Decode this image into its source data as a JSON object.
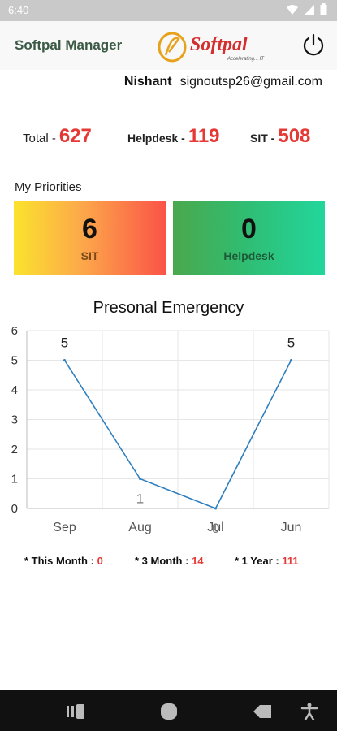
{
  "status_bar": {
    "time": "6:40",
    "icons": [
      "wifi-icon",
      "signal-icon",
      "battery-icon"
    ]
  },
  "header": {
    "app_title": "Softpal Manager",
    "logo_text": "Softpal",
    "logo_tagline": "Accelerating... IT",
    "power_icon": "power-icon"
  },
  "user": {
    "name": "Nishant",
    "email": "signoutsp26@gmail.com"
  },
  "totals": {
    "total_label": "Total -",
    "total_value": "627",
    "helpdesk_label": "Helpdesk -",
    "helpdesk_value": "119",
    "sit_label": "SIT -",
    "sit_value": "508"
  },
  "priorities": {
    "title": "My Priorities",
    "cards": [
      {
        "value": "6",
        "label": "SIT"
      },
      {
        "value": "0",
        "label": "Helpdesk"
      }
    ]
  },
  "chart_data": {
    "type": "line",
    "title": "Presonal Emergency",
    "categories": [
      "Sep",
      "Aug",
      "Jul",
      "Jun"
    ],
    "values": [
      5,
      1,
      0,
      5
    ],
    "ylim": [
      0,
      6
    ],
    "yticks": [
      0,
      1,
      2,
      3,
      4,
      5,
      6
    ],
    "grid": true,
    "line_color": "#2e7fbf"
  },
  "summary": {
    "this_month_label": "* This Month :",
    "this_month_value": "0",
    "three_month_label": "* 3 Month :",
    "three_month_value": "14",
    "one_year_label": "* 1 Year :",
    "one_year_value": "111"
  },
  "nav": {
    "icons": [
      "recent-apps-icon",
      "home-icon",
      "back-icon",
      "accessibility-icon"
    ]
  },
  "colors": {
    "accent_red": "#e53935",
    "title_green": "#3b5a45"
  }
}
